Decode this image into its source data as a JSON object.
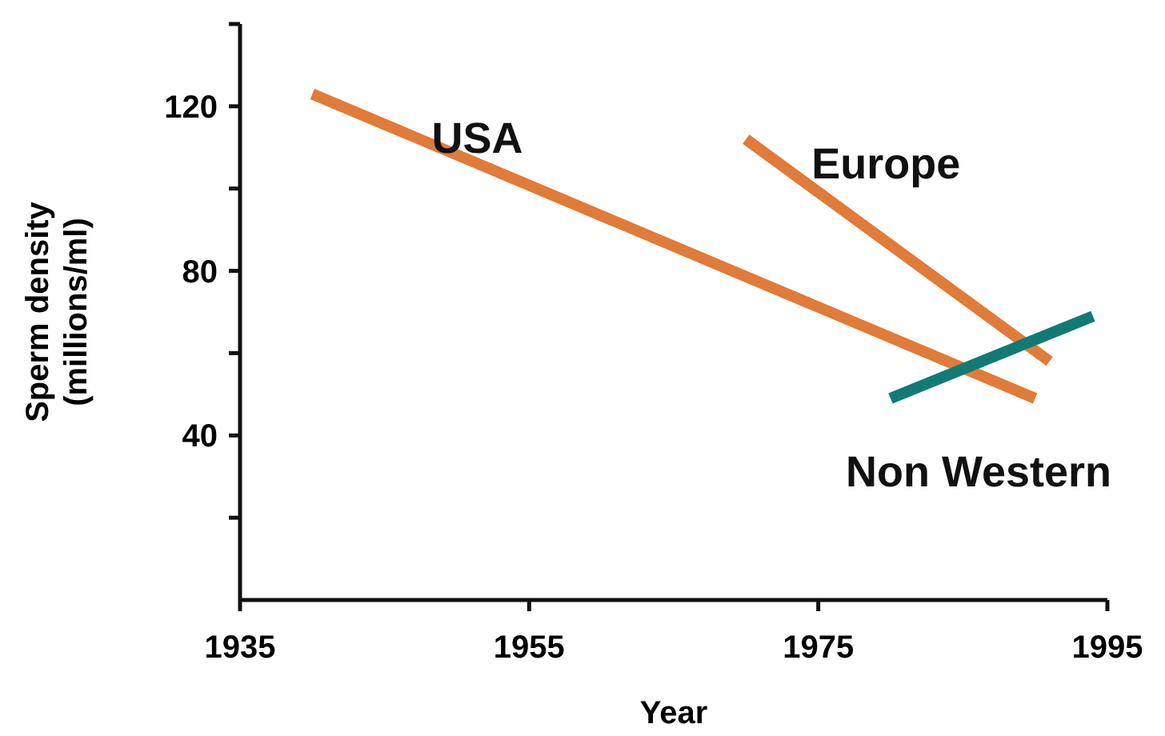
{
  "chart_data": {
    "type": "line",
    "xlabel": "Year",
    "ylabel": "Sperm density\n(millions/ml)",
    "xlim": [
      1935,
      1995
    ],
    "xticks": [
      1935,
      1955,
      1975,
      1995
    ],
    "ylim": [
      0,
      140
    ],
    "yticks": [
      {
        "value": 20,
        "label": null
      },
      40,
      {
        "value": 60,
        "label": null
      },
      80,
      {
        "value": 100,
        "label": null
      },
      120,
      {
        "value": 140,
        "label": null
      }
    ],
    "grid": false,
    "marker": "none",
    "line_style": "solid",
    "series": [
      {
        "name": "USA",
        "color": "#e07b39",
        "x": [
          1940,
          1990
        ],
        "values": [
          123,
          49
        ]
      },
      {
        "name": "Europe",
        "color": "#e07b39",
        "x": [
          1970,
          1991
        ],
        "values": [
          112,
          58
        ]
      },
      {
        "name": "Non Western",
        "color": "#127a74",
        "x": [
          1980,
          1994
        ],
        "values": [
          49,
          69
        ]
      }
    ]
  }
}
